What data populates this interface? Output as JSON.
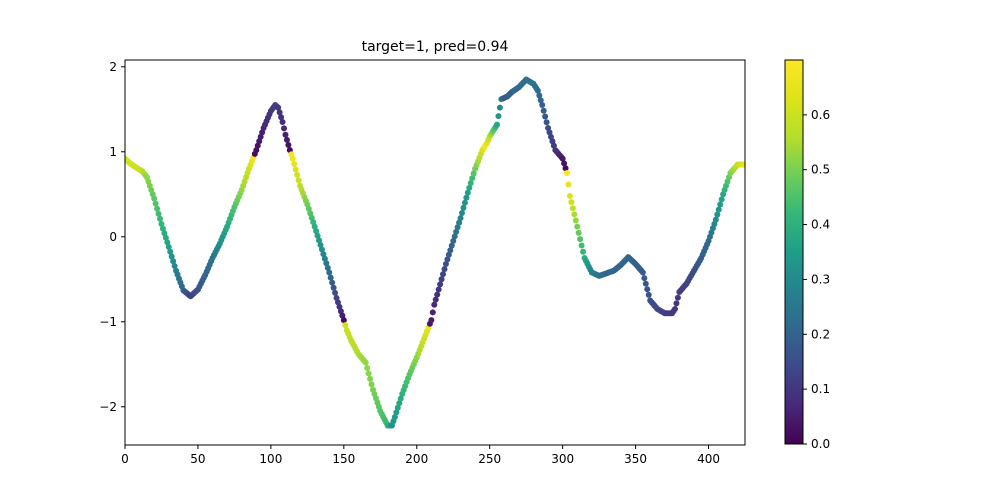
{
  "chart_data": {
    "type": "scatter",
    "title": "target=1, pred=0.94",
    "xlabel": "",
    "ylabel": "",
    "xlim": [
      0,
      425
    ],
    "ylim": [
      -2.45,
      2.08
    ],
    "x_ticks": [
      0,
      50,
      100,
      150,
      200,
      250,
      300,
      350,
      400
    ],
    "x_tick_labels": [
      "0",
      "50",
      "100",
      "150",
      "200",
      "250",
      "300",
      "350",
      "400"
    ],
    "y_ticks": [
      -2,
      -1,
      0,
      1,
      2
    ],
    "y_tick_labels": [
      "−2",
      "−1",
      "0",
      "1",
      "2"
    ],
    "grid": false,
    "colormap": "viridis",
    "colorbar": {
      "range": [
        0,
        0.7
      ],
      "ticks": [
        0,
        0.1,
        0.2,
        0.3,
        0.4,
        0.5,
        0.6
      ],
      "tick_labels": [
        "0.0",
        "0.1",
        "0.2",
        "0.3",
        "0.4",
        "0.5",
        "0.6"
      ]
    },
    "curve_keypoints": {
      "x": [
        0,
        3,
        8,
        12,
        15,
        20,
        25,
        30,
        35,
        40,
        45,
        50,
        55,
        60,
        65,
        70,
        75,
        80,
        85,
        90,
        95,
        100,
        103,
        105,
        108,
        110,
        113,
        115,
        120,
        125,
        130,
        135,
        140,
        145,
        150,
        152,
        155,
        160,
        165,
        170,
        175,
        180,
        183,
        185,
        190,
        195,
        200,
        205,
        210,
        212,
        215,
        220,
        225,
        230,
        235,
        240,
        245,
        248,
        250,
        255,
        258,
        262,
        265,
        270,
        275,
        280,
        283,
        286,
        290,
        295,
        300,
        303,
        305,
        310,
        315,
        320,
        325,
        330,
        335,
        340,
        345,
        350,
        355,
        360,
        365,
        370,
        375,
        377,
        380,
        385,
        390,
        395,
        400,
        405,
        410,
        415,
        420,
        425
      ],
      "y": [
        0.92,
        0.87,
        0.81,
        0.77,
        0.7,
        0.45,
        0.15,
        -0.12,
        -0.4,
        -0.63,
        -0.7,
        -0.62,
        -0.45,
        -0.25,
        -0.08,
        0.12,
        0.35,
        0.55,
        0.8,
        1.02,
        1.28,
        1.48,
        1.55,
        1.52,
        1.35,
        1.2,
        1.02,
        0.92,
        0.6,
        0.38,
        0.12,
        -0.15,
        -0.42,
        -0.72,
        -0.98,
        -1.1,
        -1.22,
        -1.38,
        -1.48,
        -1.8,
        -2.05,
        -2.22,
        -2.22,
        -2.12,
        -1.85,
        -1.62,
        -1.42,
        -1.2,
        -0.98,
        -0.8,
        -0.62,
        -0.32,
        -0.05,
        0.22,
        0.52,
        0.8,
        1.02,
        1.1,
        1.18,
        1.32,
        1.62,
        1.65,
        1.7,
        1.76,
        1.85,
        1.8,
        1.72,
        1.55,
        1.28,
        1.02,
        0.92,
        0.75,
        0.48,
        0.12,
        -0.25,
        -0.42,
        -0.46,
        -0.43,
        -0.4,
        -0.33,
        -0.24,
        -0.32,
        -0.42,
        -0.75,
        -0.85,
        -0.9,
        -0.9,
        -0.85,
        -0.65,
        -0.55,
        -0.4,
        -0.25,
        -0.05,
        0.2,
        0.5,
        0.75,
        0.85,
        0.85
      ]
    },
    "color_keypoints": {
      "x": [
        0,
        10,
        15,
        30,
        45,
        60,
        75,
        85,
        88,
        89,
        100,
        103,
        110,
        113,
        114,
        120,
        130,
        140,
        148,
        150,
        151,
        160,
        170,
        180,
        183,
        200,
        208,
        209,
        220,
        235,
        245,
        247,
        260,
        280,
        295,
        302,
        303,
        310,
        320,
        330,
        350,
        370,
        378,
        390,
        400,
        410,
        415,
        420,
        425
      ],
      "v": [
        0.62,
        0.6,
        0.52,
        0.36,
        0.12,
        0.24,
        0.45,
        0.6,
        0.68,
        0.02,
        0.1,
        0.12,
        0.06,
        0.02,
        0.68,
        0.58,
        0.4,
        0.22,
        0.08,
        0.02,
        0.6,
        0.55,
        0.5,
        0.42,
        0.32,
        0.52,
        0.65,
        0.04,
        0.15,
        0.35,
        0.62,
        0.68,
        0.18,
        0.25,
        0.1,
        0.02,
        0.68,
        0.5,
        0.28,
        0.2,
        0.2,
        0.12,
        0.1,
        0.15,
        0.22,
        0.38,
        0.5,
        0.58,
        0.65
      ]
    },
    "n_points": 426
  }
}
